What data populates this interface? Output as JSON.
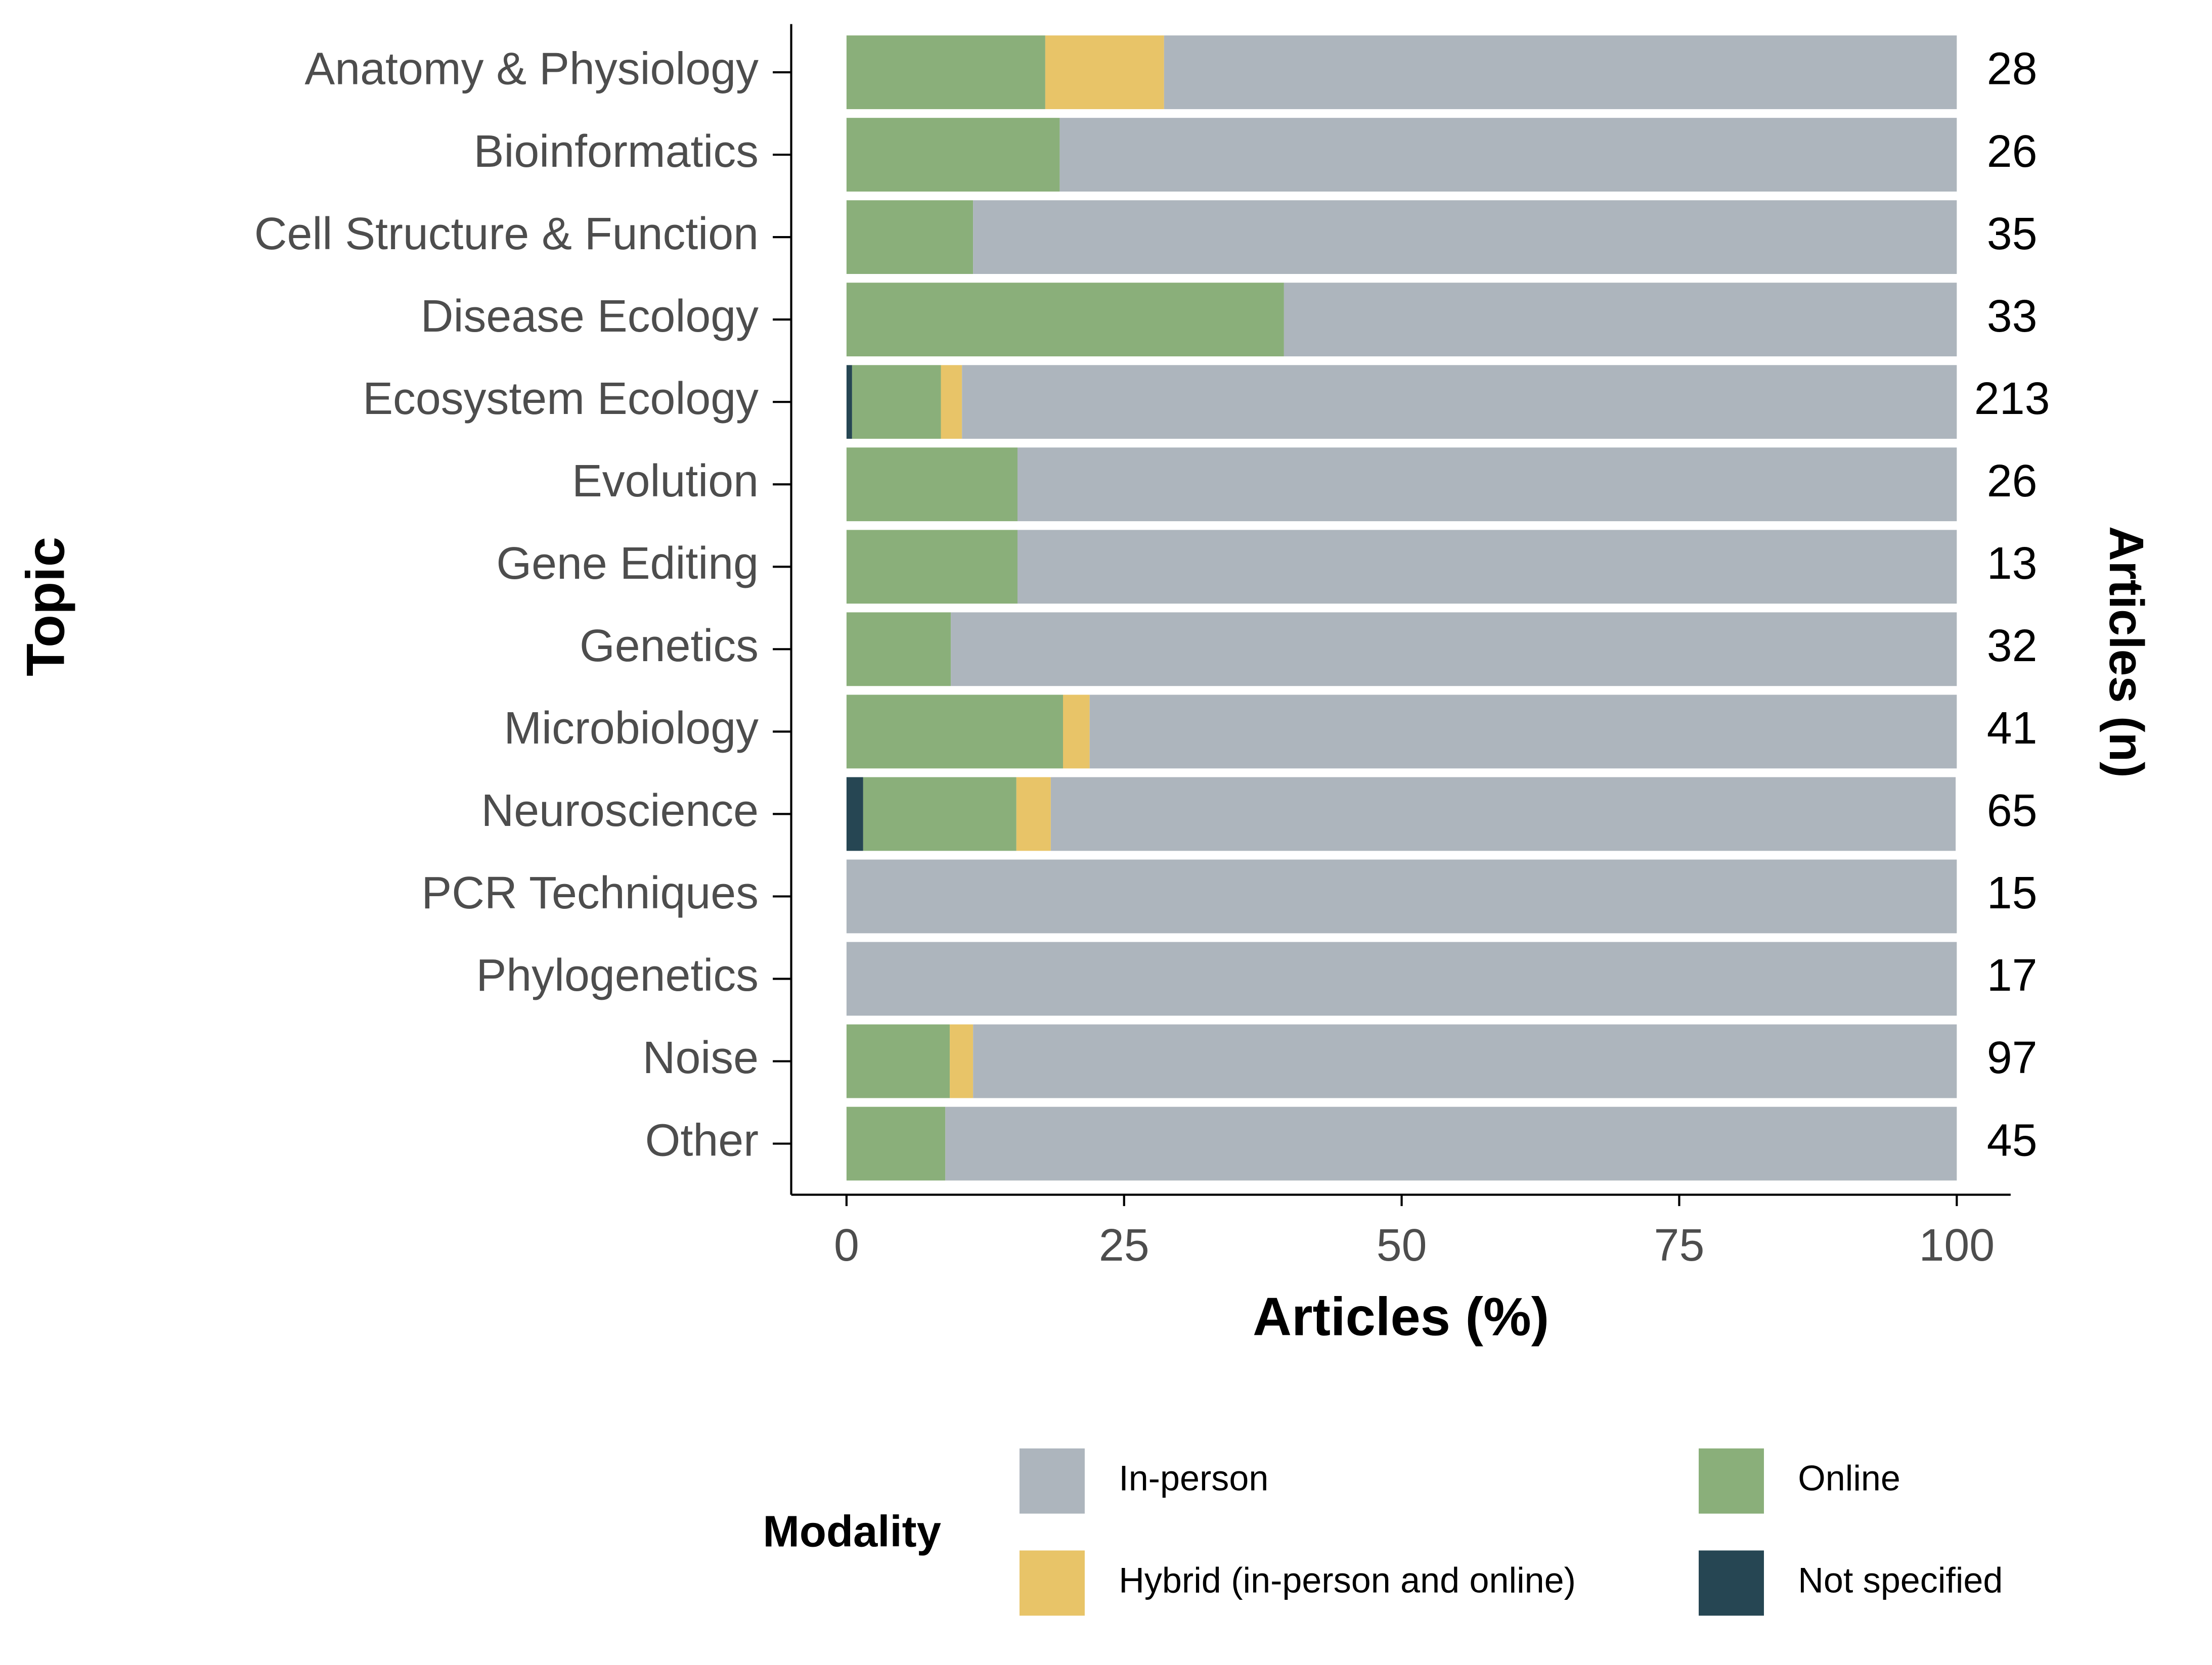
{
  "chart_data": {
    "type": "stacked_barh",
    "x_label": "Articles (%)",
    "y_label": "Topic",
    "y2_label": "Articles (n)",
    "legend_title": "Modality",
    "categories": [
      "Anatomy & Physiology",
      "Bioinformatics",
      "Cell Structure & Function",
      "Disease Ecology",
      "Ecosystem Ecology",
      "Evolution",
      "Gene Editing",
      "Genetics",
      "Microbiology",
      "Neuroscience",
      "PCR Techniques",
      "Phylogenetics",
      "Noise",
      "Other"
    ],
    "n": [
      28,
      26,
      35,
      33,
      213,
      26,
      13,
      32,
      41,
      65,
      15,
      17,
      97,
      45
    ],
    "series": [
      {
        "name": "Not specified",
        "color": "#264653",
        "values": [
          0,
          0,
          0,
          0,
          0.5,
          0,
          0,
          0,
          0,
          1.5,
          0,
          0,
          0,
          0
        ]
      },
      {
        "name": "Online",
        "color": "#8aaf7a",
        "values": [
          17.9,
          19.2,
          11.4,
          39.4,
          8.0,
          15.4,
          15.4,
          9.4,
          19.5,
          13.8,
          0,
          0,
          9.3,
          8.9
        ]
      },
      {
        "name": "Hybrid (in-person and online)",
        "color": "#e8c468",
        "values": [
          10.7,
          0,
          0,
          0,
          1.9,
          0,
          0,
          0,
          2.4,
          3.1,
          0,
          0,
          2.1,
          0
        ]
      },
      {
        "name": "In-person",
        "color": "#adb5bd",
        "values": [
          71.4,
          80.8,
          88.6,
          60.6,
          89.6,
          84.6,
          84.6,
          90.6,
          78.1,
          81.5,
          100,
          100,
          88.6,
          91.1
        ]
      }
    ],
    "xlim": [
      0,
      100
    ],
    "xticks": [
      0,
      25,
      50,
      75,
      100
    ]
  }
}
